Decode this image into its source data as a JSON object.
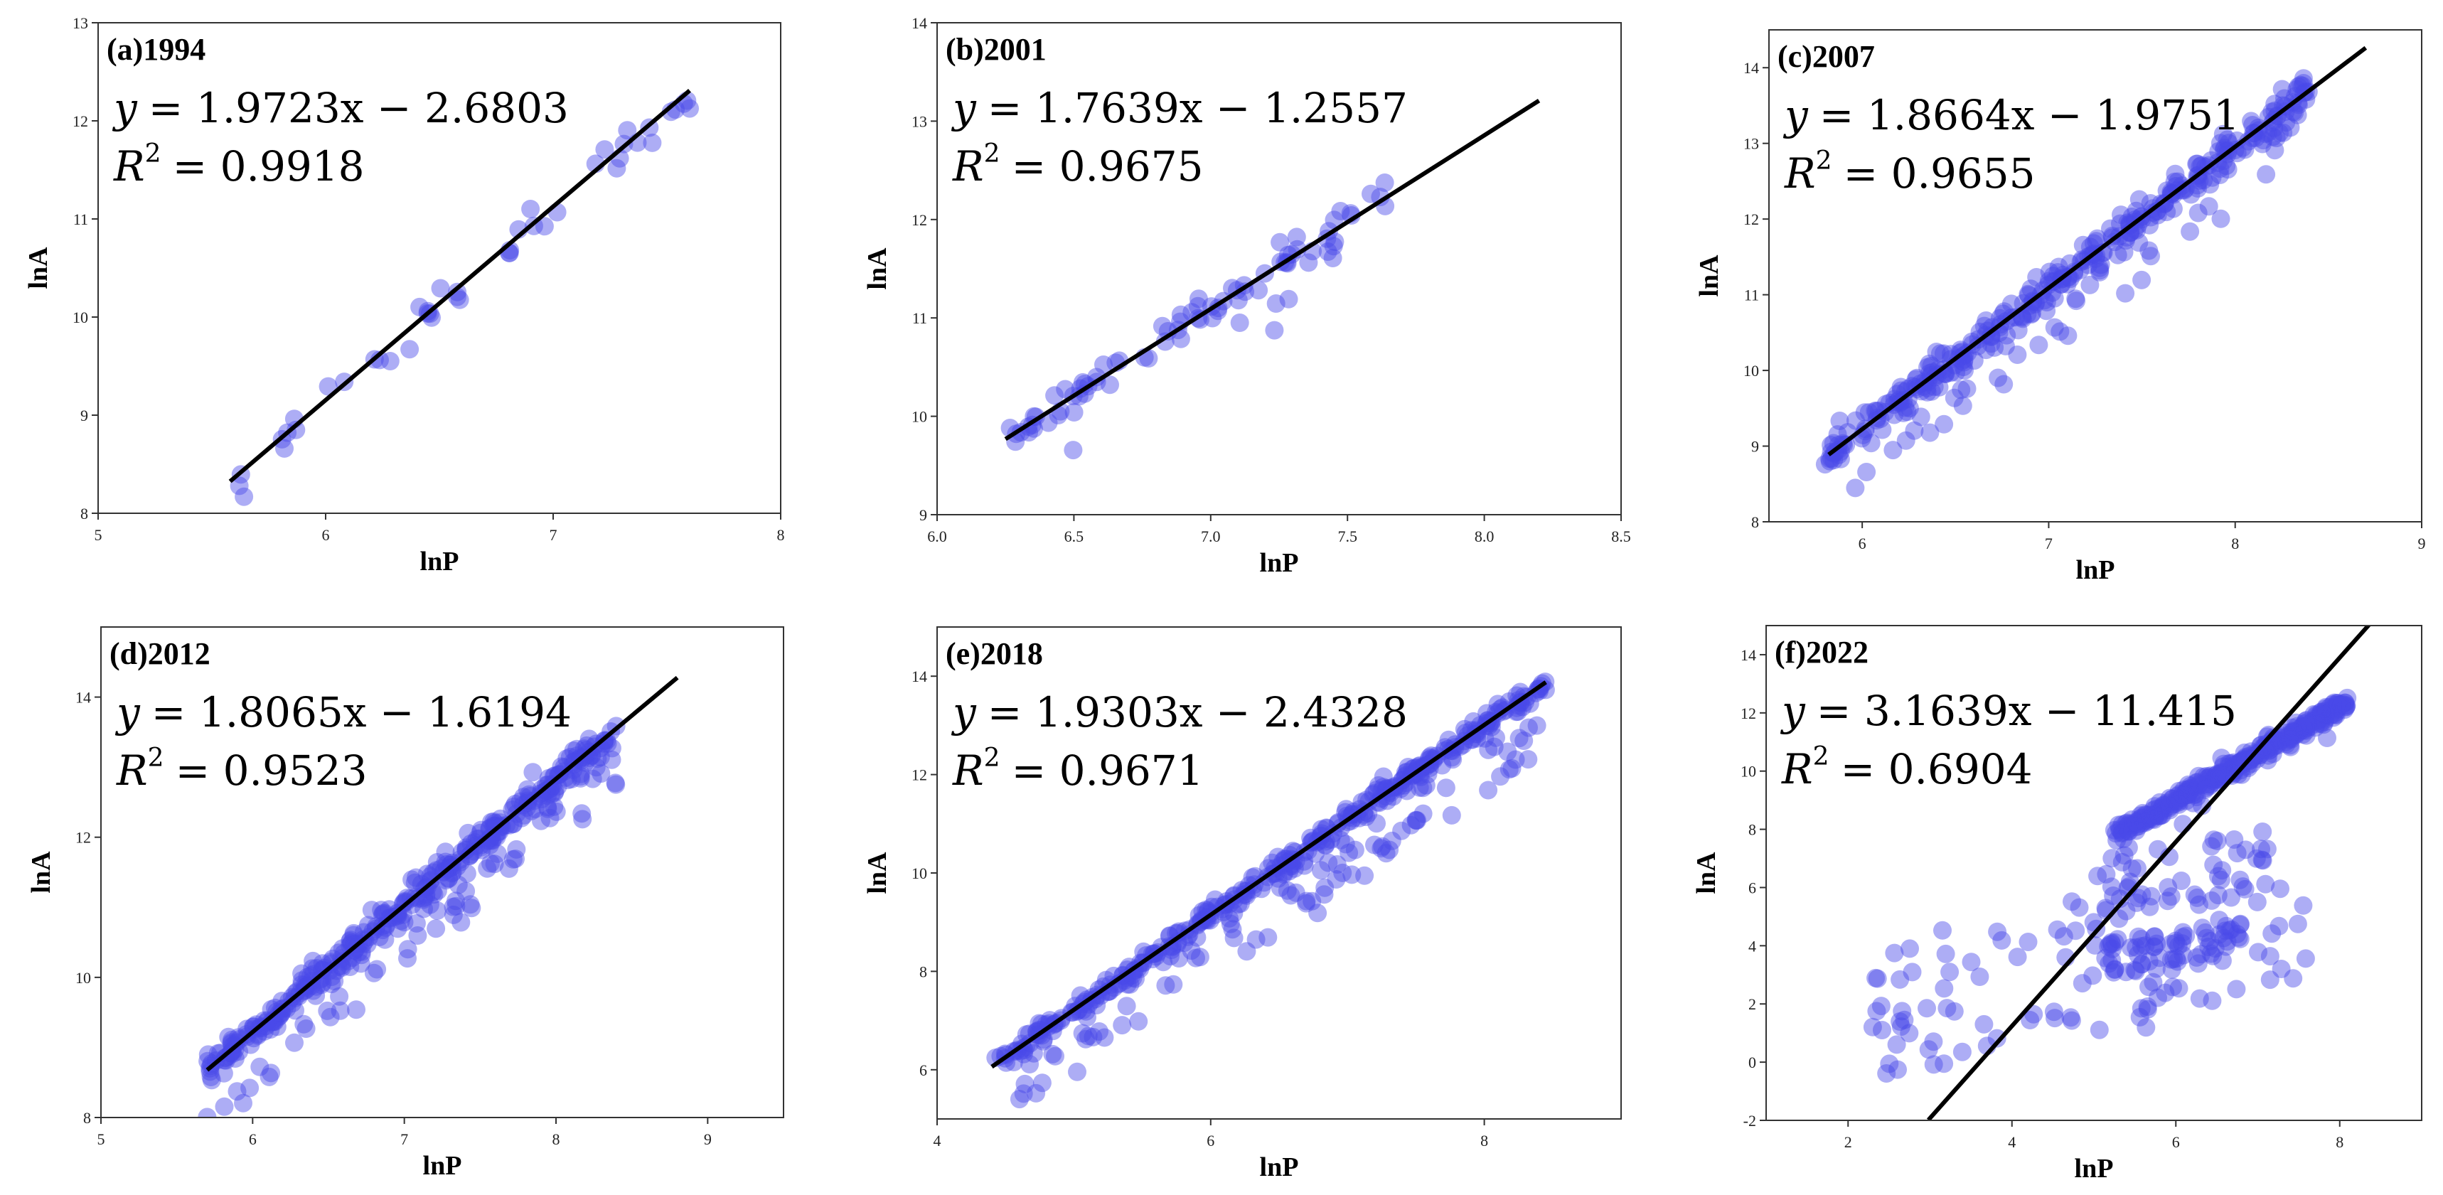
{
  "colors": {
    "points": "#4a4ae8",
    "fit_line": "#000000",
    "frame": "#333333"
  },
  "chart_data": [
    {
      "type": "scatter",
      "title": "(a)1994",
      "xlabel": "lnP",
      "ylabel": "lnA",
      "xlim": [
        5,
        8
      ],
      "ylim": [
        8,
        13
      ],
      "xticks": [
        5,
        6,
        7,
        8
      ],
      "yticks": [
        8,
        9,
        10,
        11,
        12,
        13
      ],
      "equation": {
        "y_lhs": "y",
        "rhs": "= 1.9723x − 2.6803",
        "r_base": "R",
        "r_sup": "2",
        "r_rhs": "= 0.9918"
      },
      "fit": {
        "slope": 1.9723,
        "intercept": -2.6803,
        "x_range": [
          5.58,
          7.6
        ]
      },
      "sample": {
        "n": 45,
        "x_range": [
          5.58,
          7.6
        ],
        "noise": 0.1,
        "outlier_rate": 0.0,
        "outlier_max": 0.2
      }
    },
    {
      "type": "scatter",
      "title": "(b)2001",
      "xlabel": "lnP",
      "ylabel": "lnA",
      "xlim": [
        6.0,
        8.5
      ],
      "ylim": [
        9,
        14
      ],
      "xticks": [
        "6.0",
        "6.5",
        "7.0",
        "7.5",
        "8.0",
        "8.5"
      ],
      "yticks": [
        9,
        10,
        11,
        12,
        13,
        14
      ],
      "equation": {
        "y_lhs": "y",
        "rhs": "= 1.7639x − 1.2557",
        "r_base": "R",
        "r_sup": "2",
        "r_rhs": "= 0.9675"
      },
      "fit": {
        "slope": 1.7639,
        "intercept": -1.2557,
        "x_range": [
          6.25,
          8.2
        ]
      },
      "sample": {
        "n": 85,
        "x_range": [
          6.25,
          7.65
        ],
        "noise": 0.1,
        "outlier_rate": 0.12,
        "outlier_max": 0.7
      }
    },
    {
      "type": "scatter",
      "title": "(c)2007",
      "xlabel": "lnP",
      "ylabel": "lnA",
      "xlim": [
        5.5,
        9
      ],
      "ylim": [
        8,
        14.5
      ],
      "xticks": [
        6,
        7,
        8,
        9
      ],
      "yticks": [
        8,
        9,
        10,
        11,
        12,
        13,
        14
      ],
      "equation": {
        "y_lhs": "y",
        "rhs": "= 1.8664x − 1.9751",
        "r_base": "R",
        "r_sup": "2",
        "r_rhs": "= 0.9655"
      },
      "fit": {
        "slope": 1.8664,
        "intercept": -1.9751,
        "x_range": [
          5.82,
          8.7
        ]
      },
      "sample": {
        "n": 380,
        "x_range": [
          5.8,
          8.4
        ],
        "noise": 0.12,
        "outlier_rate": 0.15,
        "outlier_max": 0.8
      }
    },
    {
      "type": "scatter",
      "title": "(d)2012",
      "xlabel": "lnP",
      "ylabel": "lnA",
      "xlim": [
        5,
        9.5
      ],
      "ylim": [
        8,
        15
      ],
      "xticks": [
        5,
        6,
        7,
        8,
        9
      ],
      "yticks": [
        8,
        10,
        12,
        14
      ],
      "equation": {
        "y_lhs": "y",
        "rhs": "= 1.8065x − 1.6194",
        "r_base": "R",
        "r_sup": "2",
        "r_rhs": "= 0.9523"
      },
      "fit": {
        "slope": 1.8065,
        "intercept": -1.6194,
        "x_range": [
          5.7,
          8.8
        ]
      },
      "sample": {
        "n": 420,
        "x_range": [
          5.7,
          8.4
        ],
        "noise": 0.12,
        "outlier_rate": 0.18,
        "outlier_max": 0.9
      }
    },
    {
      "type": "scatter",
      "title": "(e)2018",
      "xlabel": "lnP",
      "ylabel": "lnA",
      "xlim": [
        4,
        9
      ],
      "ylim": [
        5,
        15
      ],
      "xticks": [
        4,
        6,
        8
      ],
      "yticks": [
        6,
        8,
        10,
        12,
        14
      ],
      "equation": {
        "y_lhs": "y",
        "rhs": "= 1.9303x − 2.4328",
        "r_base": "R",
        "r_sup": "2",
        "r_rhs": "= 0.9671"
      },
      "fit": {
        "slope": 1.9303,
        "intercept": -2.4328,
        "x_range": [
          4.4,
          8.45
        ]
      },
      "sample": {
        "n": 450,
        "x_range": [
          4.4,
          8.45
        ],
        "noise": 0.12,
        "outlier_rate": 0.2,
        "outlier_max": 1.4
      }
    },
    {
      "type": "scatter",
      "title": "(f)2022",
      "xlabel": "lnP",
      "ylabel": "lnA",
      "xlim": [
        1,
        9
      ],
      "ylim": [
        -2,
        15
      ],
      "xticks": [
        2,
        4,
        6,
        8
      ],
      "yticks": [
        -2,
        0,
        2,
        4,
        6,
        8,
        10,
        12,
        14
      ],
      "equation": {
        "y_lhs": "y",
        "rhs": "= 3.1639x − 11.415",
        "r_base": "R",
        "r_sup": "2",
        "r_rhs": "= 0.6904"
      },
      "fit": {
        "slope": 3.1639,
        "intercept": -11.415,
        "x_range": [
          2.98,
          8.4
        ]
      },
      "sample": {
        "n": 320,
        "x_range": [
          5.2,
          8.1
        ],
        "noise": 0.15,
        "outlier_rate": 0.05,
        "outlier_max": 1.0,
        "trend": {
          "slope": 1.6,
          "intercept": -0.6
        },
        "extra_clusters": [
          {
            "n": 110,
            "x_range": [
              2.3,
              7.6
            ],
            "y_range": [
              -0.5,
              7.0
            ]
          },
          {
            "n": 60,
            "x_range": [
              5.0,
              6.8
            ],
            "y_range": [
              2.8,
              4.8
            ]
          },
          {
            "n": 40,
            "x_range": [
              5.0,
              7.2
            ],
            "y_range": [
              4.5,
              8.5
            ]
          }
        ]
      }
    }
  ]
}
